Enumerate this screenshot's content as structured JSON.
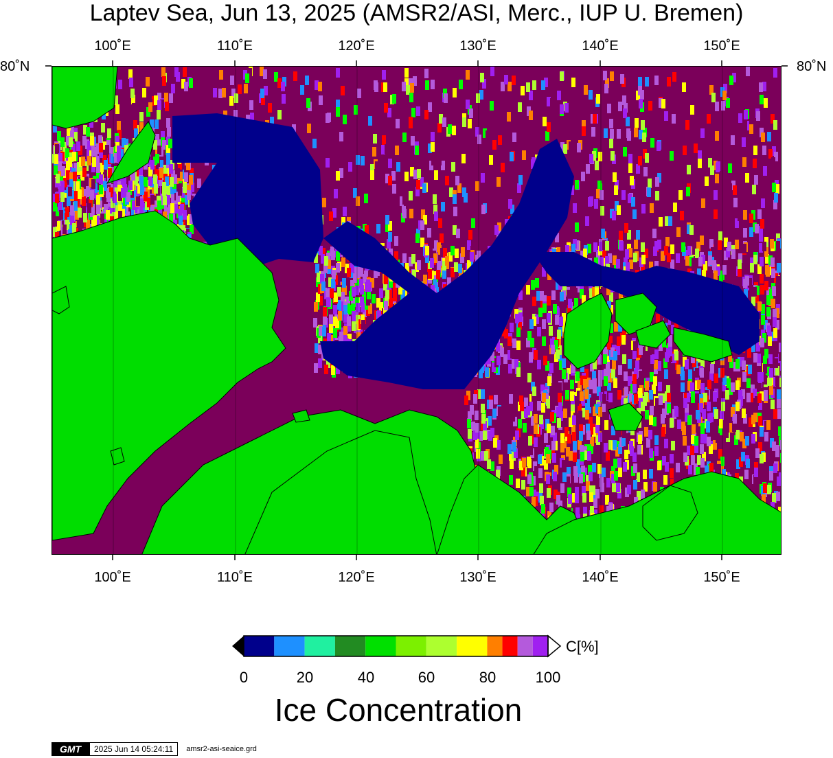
{
  "title": "Laptev Sea, Jun 13, 2025 (AMSR2/ASI, Merc., IUP U. Bremen)",
  "longitude_labels": [
    "100˚E",
    "110˚E",
    "120˚E",
    "130˚E",
    "140˚E",
    "150˚E"
  ],
  "longitudes": [
    100,
    110,
    120,
    130,
    140,
    150
  ],
  "longitude_range": [
    95,
    155
  ],
  "latitude_label": "80˚N",
  "colorbar": {
    "title": "Ice Concentration",
    "unit": "C[%]",
    "ticks": [
      "0",
      "20",
      "40",
      "60",
      "80",
      "100"
    ],
    "tick_values": [
      0,
      20,
      40,
      60,
      80,
      100
    ],
    "range": [
      0,
      100
    ],
    "colors": [
      "#00008b",
      "#1e90ff",
      "#20f0a0",
      "#228b22",
      "#00e000",
      "#00ff00",
      "#7cf000",
      "#adff2f",
      "#ffff00",
      "#ffd700",
      "#ff7f00",
      "#ff0000",
      "#b45adc",
      "#a020f0"
    ],
    "boundaries": [
      0,
      10,
      20,
      30,
      40,
      50,
      60,
      70,
      80,
      85,
      90,
      95,
      100
    ]
  },
  "colors": {
    "land": "#00dd00",
    "ice_100": "#7b005a",
    "open_water": "#00008b"
  },
  "footer": {
    "logo": "GMT",
    "timestamp": "2025 Jun 14 05:24:11",
    "file": "amsr2-asi-seaice.grd"
  }
}
